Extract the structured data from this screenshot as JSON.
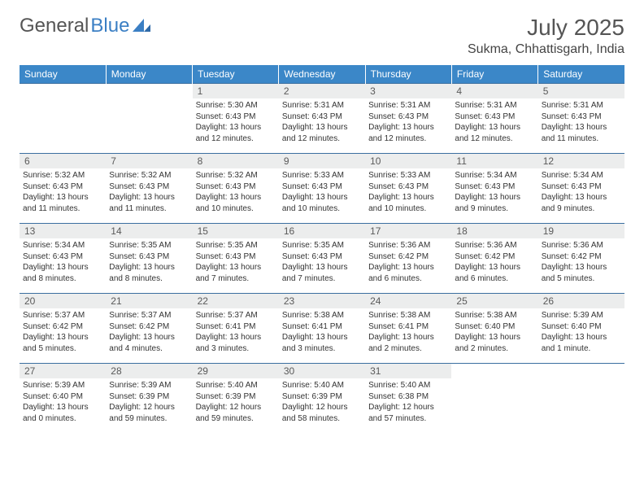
{
  "logo": {
    "text_a": "General",
    "text_b": "Blue"
  },
  "title": "July 2025",
  "location": "Sukma, Chhattisgarh, India",
  "colors": {
    "header_bg": "#3b87c8",
    "header_fg": "#ffffff",
    "daynum_bg": "#eceded",
    "border": "#3b6fa0",
    "logo_gray": "#555555",
    "logo_blue": "#3b7fc4"
  },
  "day_headers": [
    "Sunday",
    "Monday",
    "Tuesday",
    "Wednesday",
    "Thursday",
    "Friday",
    "Saturday"
  ],
  "weeks": [
    [
      {
        "n": "",
        "sr": "",
        "ss": "",
        "dl": "",
        "empty": true
      },
      {
        "n": "",
        "sr": "",
        "ss": "",
        "dl": "",
        "empty": true
      },
      {
        "n": "1",
        "sr": "Sunrise: 5:30 AM",
        "ss": "Sunset: 6:43 PM",
        "dl": "Daylight: 13 hours and 12 minutes."
      },
      {
        "n": "2",
        "sr": "Sunrise: 5:31 AM",
        "ss": "Sunset: 6:43 PM",
        "dl": "Daylight: 13 hours and 12 minutes."
      },
      {
        "n": "3",
        "sr": "Sunrise: 5:31 AM",
        "ss": "Sunset: 6:43 PM",
        "dl": "Daylight: 13 hours and 12 minutes."
      },
      {
        "n": "4",
        "sr": "Sunrise: 5:31 AM",
        "ss": "Sunset: 6:43 PM",
        "dl": "Daylight: 13 hours and 12 minutes."
      },
      {
        "n": "5",
        "sr": "Sunrise: 5:31 AM",
        "ss": "Sunset: 6:43 PM",
        "dl": "Daylight: 13 hours and 11 minutes."
      }
    ],
    [
      {
        "n": "6",
        "sr": "Sunrise: 5:32 AM",
        "ss": "Sunset: 6:43 PM",
        "dl": "Daylight: 13 hours and 11 minutes."
      },
      {
        "n": "7",
        "sr": "Sunrise: 5:32 AM",
        "ss": "Sunset: 6:43 PM",
        "dl": "Daylight: 13 hours and 11 minutes."
      },
      {
        "n": "8",
        "sr": "Sunrise: 5:32 AM",
        "ss": "Sunset: 6:43 PM",
        "dl": "Daylight: 13 hours and 10 minutes."
      },
      {
        "n": "9",
        "sr": "Sunrise: 5:33 AM",
        "ss": "Sunset: 6:43 PM",
        "dl": "Daylight: 13 hours and 10 minutes."
      },
      {
        "n": "10",
        "sr": "Sunrise: 5:33 AM",
        "ss": "Sunset: 6:43 PM",
        "dl": "Daylight: 13 hours and 10 minutes."
      },
      {
        "n": "11",
        "sr": "Sunrise: 5:34 AM",
        "ss": "Sunset: 6:43 PM",
        "dl": "Daylight: 13 hours and 9 minutes."
      },
      {
        "n": "12",
        "sr": "Sunrise: 5:34 AM",
        "ss": "Sunset: 6:43 PM",
        "dl": "Daylight: 13 hours and 9 minutes."
      }
    ],
    [
      {
        "n": "13",
        "sr": "Sunrise: 5:34 AM",
        "ss": "Sunset: 6:43 PM",
        "dl": "Daylight: 13 hours and 8 minutes."
      },
      {
        "n": "14",
        "sr": "Sunrise: 5:35 AM",
        "ss": "Sunset: 6:43 PM",
        "dl": "Daylight: 13 hours and 8 minutes."
      },
      {
        "n": "15",
        "sr": "Sunrise: 5:35 AM",
        "ss": "Sunset: 6:43 PM",
        "dl": "Daylight: 13 hours and 7 minutes."
      },
      {
        "n": "16",
        "sr": "Sunrise: 5:35 AM",
        "ss": "Sunset: 6:43 PM",
        "dl": "Daylight: 13 hours and 7 minutes."
      },
      {
        "n": "17",
        "sr": "Sunrise: 5:36 AM",
        "ss": "Sunset: 6:42 PM",
        "dl": "Daylight: 13 hours and 6 minutes."
      },
      {
        "n": "18",
        "sr": "Sunrise: 5:36 AM",
        "ss": "Sunset: 6:42 PM",
        "dl": "Daylight: 13 hours and 6 minutes."
      },
      {
        "n": "19",
        "sr": "Sunrise: 5:36 AM",
        "ss": "Sunset: 6:42 PM",
        "dl": "Daylight: 13 hours and 5 minutes."
      }
    ],
    [
      {
        "n": "20",
        "sr": "Sunrise: 5:37 AM",
        "ss": "Sunset: 6:42 PM",
        "dl": "Daylight: 13 hours and 5 minutes."
      },
      {
        "n": "21",
        "sr": "Sunrise: 5:37 AM",
        "ss": "Sunset: 6:42 PM",
        "dl": "Daylight: 13 hours and 4 minutes."
      },
      {
        "n": "22",
        "sr": "Sunrise: 5:37 AM",
        "ss": "Sunset: 6:41 PM",
        "dl": "Daylight: 13 hours and 3 minutes."
      },
      {
        "n": "23",
        "sr": "Sunrise: 5:38 AM",
        "ss": "Sunset: 6:41 PM",
        "dl": "Daylight: 13 hours and 3 minutes."
      },
      {
        "n": "24",
        "sr": "Sunrise: 5:38 AM",
        "ss": "Sunset: 6:41 PM",
        "dl": "Daylight: 13 hours and 2 minutes."
      },
      {
        "n": "25",
        "sr": "Sunrise: 5:38 AM",
        "ss": "Sunset: 6:40 PM",
        "dl": "Daylight: 13 hours and 2 minutes."
      },
      {
        "n": "26",
        "sr": "Sunrise: 5:39 AM",
        "ss": "Sunset: 6:40 PM",
        "dl": "Daylight: 13 hours and 1 minute."
      }
    ],
    [
      {
        "n": "27",
        "sr": "Sunrise: 5:39 AM",
        "ss": "Sunset: 6:40 PM",
        "dl": "Daylight: 13 hours and 0 minutes."
      },
      {
        "n": "28",
        "sr": "Sunrise: 5:39 AM",
        "ss": "Sunset: 6:39 PM",
        "dl": "Daylight: 12 hours and 59 minutes."
      },
      {
        "n": "29",
        "sr": "Sunrise: 5:40 AM",
        "ss": "Sunset: 6:39 PM",
        "dl": "Daylight: 12 hours and 59 minutes."
      },
      {
        "n": "30",
        "sr": "Sunrise: 5:40 AM",
        "ss": "Sunset: 6:39 PM",
        "dl": "Daylight: 12 hours and 58 minutes."
      },
      {
        "n": "31",
        "sr": "Sunrise: 5:40 AM",
        "ss": "Sunset: 6:38 PM",
        "dl": "Daylight: 12 hours and 57 minutes."
      },
      {
        "n": "",
        "sr": "",
        "ss": "",
        "dl": "",
        "empty": true
      },
      {
        "n": "",
        "sr": "",
        "ss": "",
        "dl": "",
        "empty": true
      }
    ]
  ]
}
